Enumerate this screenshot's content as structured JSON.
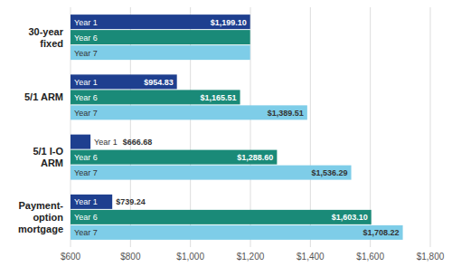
{
  "chart_data": {
    "type": "bar",
    "orientation": "horizontal",
    "categories": [
      "30-year\nfixed",
      "5/1 ARM",
      "5/1 I-O\nARM",
      "Payment-\noption\nmortgage"
    ],
    "series": [
      {
        "name": "Year 1",
        "color": "#1e3f8f",
        "values": [
          1199.1,
          954.83,
          666.68,
          739.24
        ],
        "value_labels": [
          "$1,199.10",
          "$954.83",
          "$666.68",
          "$739.24"
        ]
      },
      {
        "name": "Year 6",
        "color": "#1a8a78",
        "values": [
          1199.1,
          1165.51,
          1288.6,
          1603.1
        ],
        "value_labels": [
          null,
          "$1,165.51",
          "$1,288.60",
          "$1,603.10"
        ]
      },
      {
        "name": "Year 7",
        "color": "#7ecde8",
        "values": [
          1199.1,
          1389.51,
          1536.29,
          1708.22
        ],
        "value_labels": [
          null,
          "$1,389.51",
          "$1,536.29",
          "$1,708.22"
        ]
      }
    ],
    "xlim": [
      600,
      1800
    ],
    "xticks": [
      {
        "value": 600,
        "label": "$600"
      },
      {
        "value": 800,
        "label": "$800"
      },
      {
        "value": 1000,
        "label": "$1,000"
      },
      {
        "value": 1200,
        "label": "$1,200"
      },
      {
        "value": 1400,
        "label": "$1,400"
      },
      {
        "value": 1600,
        "label": "$1,600"
      },
      {
        "value": 1800,
        "label": "$1,800"
      }
    ],
    "grid": true,
    "data_labels": true
  }
}
